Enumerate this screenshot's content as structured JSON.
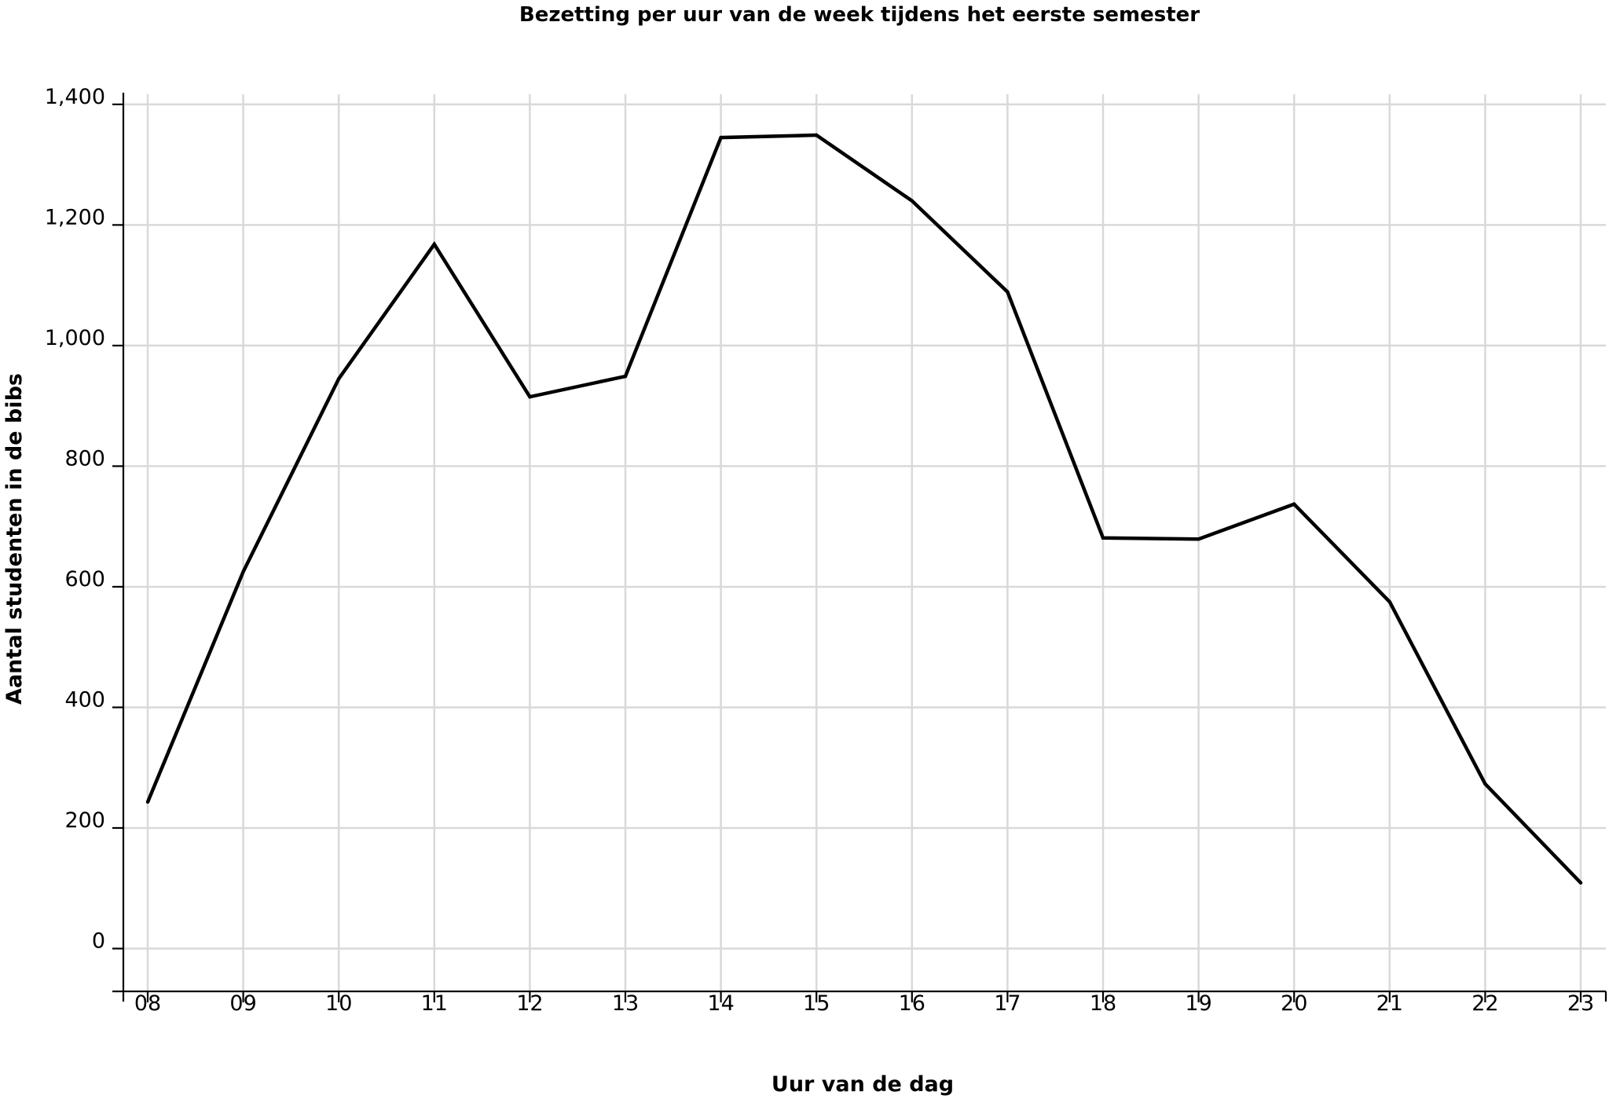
{
  "chart_data": {
    "type": "line",
    "title": "Bezetting per uur van de week tijdens het eerste semester",
    "xlabel": "Uur van de dag",
    "ylabel": "Aantal studenten in de bibs",
    "categories": [
      "08",
      "09",
      "10",
      "11",
      "12",
      "13",
      "14",
      "15",
      "16",
      "17",
      "18",
      "19",
      "20",
      "21",
      "22",
      "23"
    ],
    "series": [
      {
        "values": [
          243,
          625,
          945,
          1168,
          915,
          949,
          1345,
          1349,
          1240,
          1089,
          681,
          679,
          737,
          575,
          273,
          109
        ]
      }
    ],
    "yticks": [
      0,
      200,
      400,
      600,
      800,
      1000,
      1200,
      1400
    ],
    "ytick_labels": [
      "0",
      "200",
      "400",
      "600",
      "800",
      "1,000",
      "1,200",
      "1,400"
    ],
    "ylim": [
      -68,
      1400
    ],
    "grid": true,
    "line_color": "#000000",
    "grid_color": "#d9d9d9"
  }
}
